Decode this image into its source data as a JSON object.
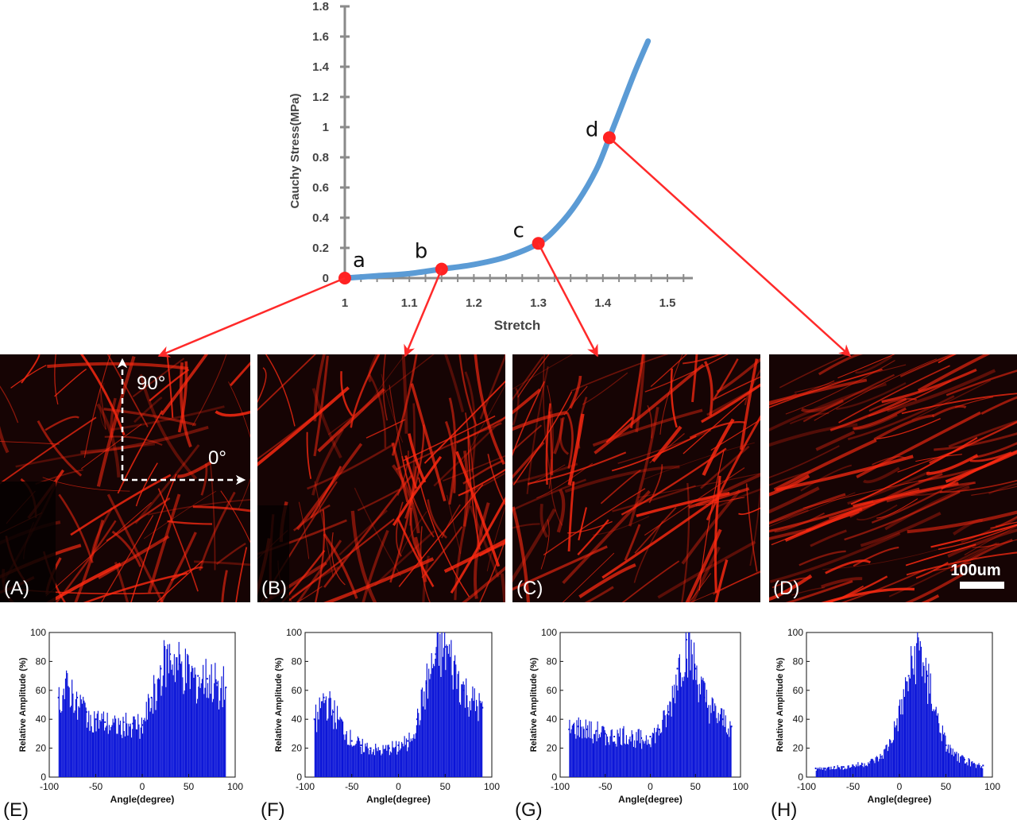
{
  "chart_data": [
    {
      "id": "stress-stretch",
      "type": "line",
      "xlabel": "Stretch",
      "ylabel": "Cauchy Stress(MPa)",
      "xlim": [
        1,
        1.55
      ],
      "ylim": [
        0,
        1.8
      ],
      "xticks": [
        "1",
        "1.1",
        "1.2",
        "1.3",
        "1.4",
        "1.5"
      ],
      "yticks": [
        "0",
        "0.2",
        "0.4",
        "0.6",
        "0.8",
        "1",
        "1.2",
        "1.4",
        "1.6",
        "1.8"
      ],
      "series": [
        {
          "x": [
            1.0,
            1.05,
            1.1,
            1.15,
            1.2,
            1.25,
            1.3,
            1.33,
            1.36,
            1.39,
            1.41,
            1.43,
            1.45,
            1.47
          ],
          "y": [
            0.0,
            0.015,
            0.03,
            0.06,
            0.09,
            0.14,
            0.23,
            0.34,
            0.5,
            0.72,
            0.93,
            1.15,
            1.37,
            1.57
          ]
        }
      ],
      "points": [
        {
          "label": "a",
          "x": 1.0,
          "y": 0.0
        },
        {
          "label": "b",
          "x": 1.15,
          "y": 0.06
        },
        {
          "label": "c",
          "x": 1.3,
          "y": 0.23
        },
        {
          "label": "d",
          "x": 1.41,
          "y": 0.93
        }
      ],
      "line_color": "#5b9bd5",
      "point_color": "#ff2222"
    },
    {
      "id": "E",
      "type": "bar",
      "panel_label": "(E)",
      "xlabel": "Angle(degree)",
      "ylabel": "Relative Amplitude (%)",
      "xlim": [
        -100,
        100
      ],
      "ylim": [
        0,
        100
      ],
      "xticks": [
        "-100",
        "-50",
        "0",
        "50",
        "100"
      ],
      "yticks": [
        "0",
        "20",
        "40",
        "60",
        "80",
        "100"
      ],
      "x": [
        -90,
        -80,
        -70,
        -60,
        -50,
        -40,
        -30,
        -20,
        -10,
        0,
        10,
        20,
        30,
        40,
        50,
        60,
        70,
        80,
        90
      ],
      "values": [
        55,
        62,
        55,
        45,
        40,
        38,
        35,
        38,
        37,
        36,
        55,
        75,
        85,
        78,
        72,
        70,
        68,
        65,
        62
      ]
    },
    {
      "id": "F",
      "type": "bar",
      "panel_label": "(F)",
      "xlabel": "Angle(degree)",
      "ylabel": "Relative Amplitude (%)",
      "xlim": [
        -100,
        100
      ],
      "ylim": [
        0,
        100
      ],
      "xticks": [
        "-100",
        "-50",
        "0",
        "50",
        "100"
      ],
      "yticks": [
        "0",
        "20",
        "40",
        "60",
        "80",
        "100"
      ],
      "x": [
        -90,
        -80,
        -70,
        -60,
        -50,
        -40,
        -30,
        -20,
        -10,
        0,
        10,
        20,
        30,
        40,
        50,
        60,
        70,
        80,
        90
      ],
      "values": [
        40,
        55,
        45,
        35,
        25,
        22,
        20,
        18,
        20,
        22,
        25,
        40,
        65,
        85,
        90,
        75,
        60,
        52,
        48
      ]
    },
    {
      "id": "G",
      "type": "bar",
      "panel_label": "(G)",
      "xlabel": "Angle(degree)",
      "ylabel": "Relative Amplitude (%)",
      "xlim": [
        -100,
        100
      ],
      "ylim": [
        0,
        100
      ],
      "xticks": [
        "-100",
        "-50",
        "0",
        "50",
        "100"
      ],
      "yticks": [
        "0",
        "20",
        "40",
        "60",
        "80",
        "100"
      ],
      "x": [
        -90,
        -80,
        -70,
        -60,
        -50,
        -40,
        -30,
        -20,
        -10,
        0,
        10,
        20,
        30,
        40,
        50,
        60,
        70,
        80,
        90
      ],
      "values": [
        33,
        35,
        33,
        32,
        30,
        28,
        30,
        28,
        27,
        28,
        33,
        45,
        75,
        95,
        75,
        55,
        45,
        40,
        35
      ]
    },
    {
      "id": "H",
      "type": "bar",
      "panel_label": "(H)",
      "xlabel": "Angle(degree)",
      "ylabel": "Relative Amplitude (%)",
      "xlim": [
        -100,
        100
      ],
      "ylim": [
        0,
        100
      ],
      "xticks": [
        "-100",
        "-50",
        "0",
        "50",
        "100"
      ],
      "yticks": [
        "0",
        "20",
        "40",
        "60",
        "80",
        "100"
      ],
      "x": [
        -90,
        -80,
        -70,
        -60,
        -50,
        -40,
        -30,
        -20,
        -10,
        0,
        10,
        20,
        30,
        40,
        50,
        60,
        70,
        80,
        90
      ],
      "values": [
        6,
        6,
        7,
        7,
        8,
        9,
        11,
        14,
        25,
        45,
        70,
        92,
        70,
        42,
        22,
        15,
        12,
        9,
        8
      ]
    }
  ],
  "images": [
    {
      "id": "A",
      "panel_label": "(A)"
    },
    {
      "id": "B",
      "panel_label": "(B)"
    },
    {
      "id": "C",
      "panel_label": "(C)"
    },
    {
      "id": "D",
      "panel_label": "(D)",
      "scale_bar_label": "100um"
    }
  ],
  "annotations": {
    "angle_90": "90°",
    "angle_0": "0°"
  },
  "colors": {
    "hist_bar": "#0a14d8",
    "arrow": "#ff2a2a",
    "image_bg": "#160404",
    "fiber": "#ff2a12"
  }
}
